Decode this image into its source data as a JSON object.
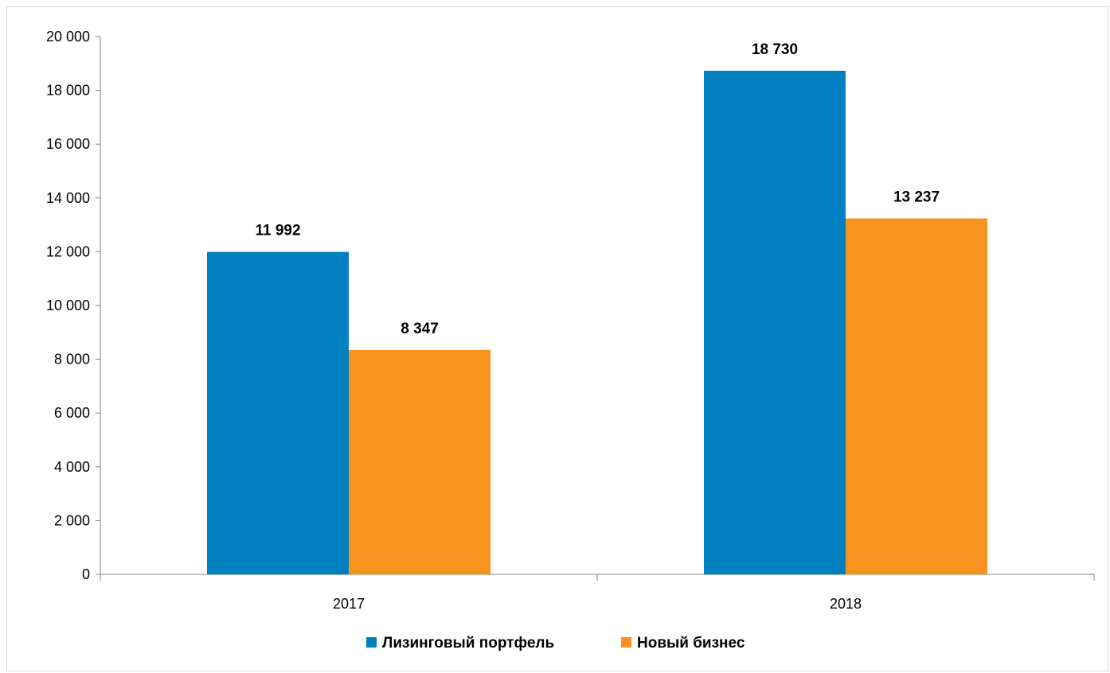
{
  "chart_data": {
    "type": "bar",
    "categories": [
      "2017",
      "2018"
    ],
    "series": [
      {
        "name": "Лизинговый портфель",
        "values": [
          11992,
          18730
        ],
        "labels": [
          "11 992",
          "18 730"
        ],
        "color": "#0080c0"
      },
      {
        "name": "Новый бизнес",
        "values": [
          8347,
          13237
        ],
        "labels": [
          "8 347",
          "13 237"
        ],
        "color": "#f7931e"
      }
    ],
    "ylim": [
      0,
      20000
    ],
    "yticks": [
      0,
      2000,
      4000,
      6000,
      8000,
      10000,
      12000,
      14000,
      16000,
      18000,
      20000
    ],
    "ytick_labels": [
      "0",
      "2 000",
      "4 000",
      "6 000",
      "8 000",
      "10 000",
      "12 000",
      "14 000",
      "16 000",
      "18 000",
      "20 000"
    ],
    "grid": false,
    "legend": "bottom"
  }
}
